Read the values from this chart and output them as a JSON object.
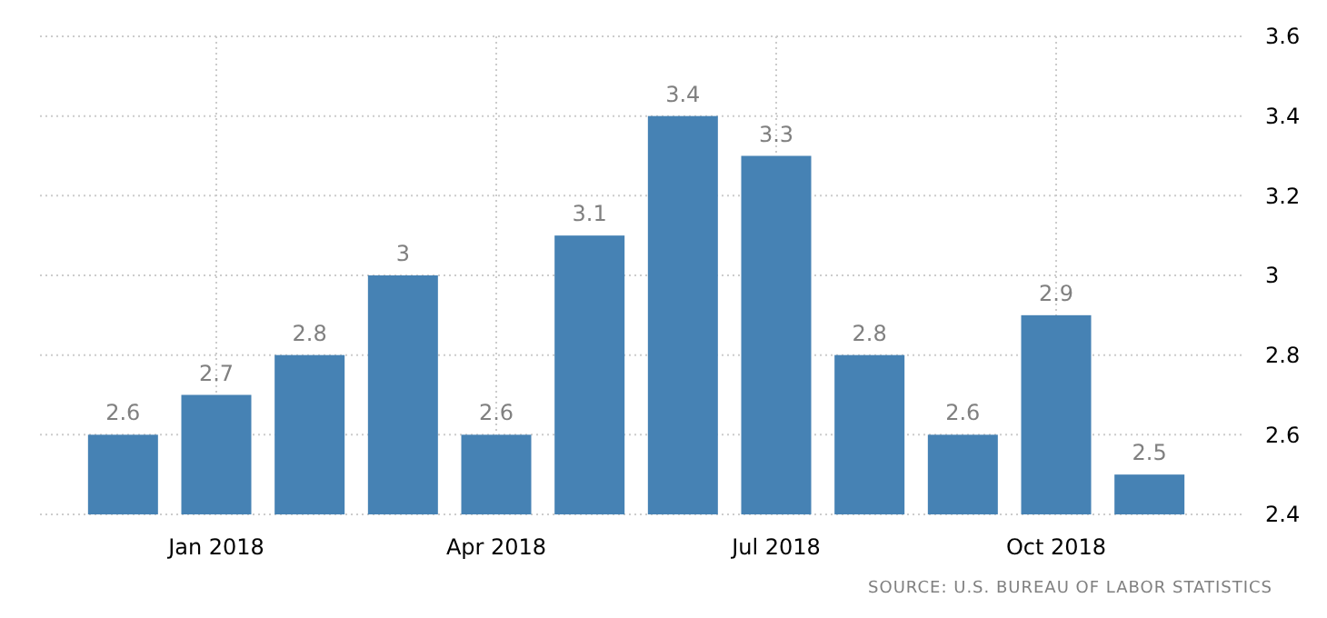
{
  "chart_data": {
    "type": "bar",
    "categories": [
      null,
      "Jan 2018",
      null,
      null,
      "Apr 2018",
      null,
      null,
      "Jul 2018",
      null,
      null,
      "Oct 2018",
      null
    ],
    "values": [
      2.6,
      2.7,
      2.8,
      3,
      2.6,
      3.1,
      3.4,
      3.3,
      2.8,
      2.6,
      2.9,
      2.5
    ],
    "color": "#4682b4",
    "data_labels": true,
    "ylim": [
      2.4,
      3.6
    ],
    "yticks": [
      2.4,
      2.6,
      2.8,
      3,
      3.2,
      3.4,
      3.6
    ],
    "grid": true,
    "annotations": [
      "SOURCE: U.S. BUREAU OF LABOR STATISTICS"
    ]
  }
}
